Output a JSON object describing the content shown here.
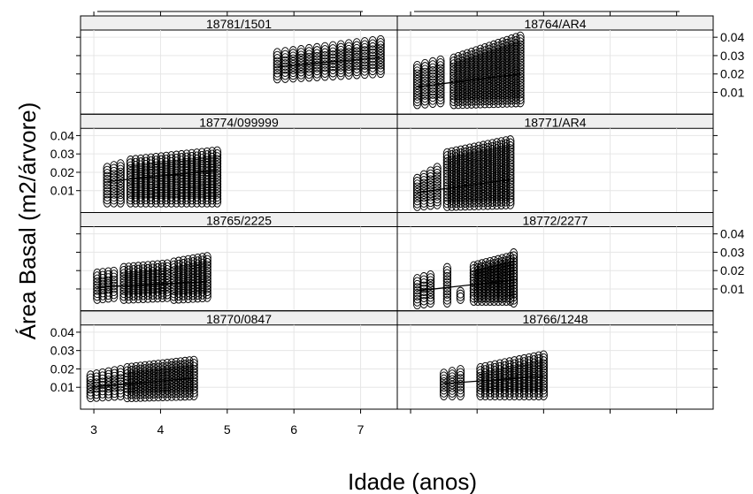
{
  "chart_data": {
    "type": "scatter",
    "layout": "trellis 2 columns x 4 rows, shared axes",
    "xlabel": "Idade (anos)",
    "ylabel": "Área Basal (m2/árvore)",
    "xlim": [
      2.8,
      7.55
    ],
    "ylim": [
      0.0,
      0.042
    ],
    "x_ticks": [
      3,
      4,
      5,
      6,
      7
    ],
    "y_ticks": [
      0.01,
      0.02,
      0.03,
      0.04
    ],
    "y_tick_labels": [
      "0.01",
      "0.02",
      "0.03",
      "0.04"
    ],
    "grid": true,
    "marker": "open ellipse",
    "panels": [
      {
        "label": "18781/1501",
        "col": 0,
        "row": 0,
        "clusters": [
          {
            "x_start": 5.75,
            "x_end": 7.3,
            "n": 14,
            "low_start": 0.018,
            "low_end": 0.021,
            "high_start": 0.031,
            "high_end": 0.038
          }
        ],
        "trend": [
          [
            5.75,
            0.024
          ],
          [
            7.3,
            0.029
          ]
        ]
      },
      {
        "label": "18764/AR4",
        "col": 1,
        "row": 0,
        "clusters": [
          {
            "x_start": 3.1,
            "x_end": 3.45,
            "n": 4,
            "low_start": 0.004,
            "low_end": 0.005,
            "high_start": 0.024,
            "high_end": 0.027
          },
          {
            "x_start": 3.65,
            "x_end": 4.65,
            "n": 16,
            "low_start": 0.004,
            "low_end": 0.005,
            "high_start": 0.028,
            "high_end": 0.04
          }
        ],
        "trend": [
          [
            3.1,
            0.013
          ],
          [
            4.65,
            0.02
          ]
        ]
      },
      {
        "label": "18774/099999",
        "col": 0,
        "row": 1,
        "clusters": [
          {
            "x_start": 3.2,
            "x_end": 3.4,
            "n": 3,
            "low_start": 0.004,
            "low_end": 0.004,
            "high_start": 0.022,
            "high_end": 0.024
          },
          {
            "x_start": 3.55,
            "x_end": 4.85,
            "n": 18,
            "low_start": 0.004,
            "low_end": 0.004,
            "high_start": 0.026,
            "high_end": 0.031
          }
        ],
        "trend": [
          [
            3.2,
            0.015
          ],
          [
            4.85,
            0.021
          ]
        ]
      },
      {
        "label": "18771/AR4",
        "col": 1,
        "row": 1,
        "clusters": [
          {
            "x_start": 3.1,
            "x_end": 3.4,
            "n": 4,
            "low_start": 0.002,
            "low_end": 0.003,
            "high_start": 0.016,
            "high_end": 0.022
          },
          {
            "x_start": 3.55,
            "x_end": 4.5,
            "n": 15,
            "low_start": 0.002,
            "low_end": 0.003,
            "high_start": 0.03,
            "high_end": 0.037
          }
        ],
        "trend": [
          [
            3.1,
            0.009
          ],
          [
            4.5,
            0.016
          ]
        ]
      },
      {
        "label": "18765/2225",
        "col": 0,
        "row": 2,
        "clusters": [
          {
            "x_start": 3.05,
            "x_end": 3.3,
            "n": 4,
            "low_start": 0.005,
            "low_end": 0.006,
            "high_start": 0.018,
            "high_end": 0.019
          },
          {
            "x_start": 3.45,
            "x_end": 4.1,
            "n": 10,
            "low_start": 0.005,
            "low_end": 0.006,
            "high_start": 0.021,
            "high_end": 0.023
          },
          {
            "x_start": 4.2,
            "x_end": 4.7,
            "n": 8,
            "low_start": 0.005,
            "low_end": 0.006,
            "high_start": 0.024,
            "high_end": 0.027
          }
        ],
        "trend": [
          [
            3.05,
            0.011
          ],
          [
            4.7,
            0.014
          ]
        ]
      },
      {
        "label": "18772/2277",
        "col": 1,
        "row": 2,
        "clusters": [
          {
            "x_start": 3.1,
            "x_end": 3.3,
            "n": 3,
            "low_start": 0.002,
            "low_end": 0.003,
            "high_start": 0.015,
            "high_end": 0.017
          },
          {
            "x_start": 3.55,
            "x_end": 3.6,
            "n": 1,
            "low_start": 0.003,
            "low_end": 0.003,
            "high_start": 0.021,
            "high_end": 0.021
          },
          {
            "x_start": 3.75,
            "x_end": 3.8,
            "n": 1,
            "low_start": 0.005,
            "low_end": 0.005,
            "high_start": 0.008,
            "high_end": 0.008
          },
          {
            "x_start": 3.95,
            "x_end": 4.5,
            "n": 10,
            "low_start": 0.004,
            "low_end": 0.004,
            "high_start": 0.022,
            "high_end": 0.027
          },
          {
            "x_start": 4.55,
            "x_end": 4.6,
            "n": 1,
            "low_start": 0.003,
            "low_end": 0.003,
            "high_start": 0.029,
            "high_end": 0.029
          }
        ],
        "trend": [
          [
            3.1,
            0.009
          ],
          [
            4.6,
            0.015
          ]
        ]
      },
      {
        "label": "18770/0847",
        "col": 0,
        "row": 3,
        "clusters": [
          {
            "x_start": 2.95,
            "x_end": 3.4,
            "n": 6,
            "low_start": 0.005,
            "low_end": 0.006,
            "high_start": 0.016,
            "high_end": 0.019
          },
          {
            "x_start": 3.5,
            "x_end": 4.5,
            "n": 16,
            "low_start": 0.005,
            "low_end": 0.006,
            "high_start": 0.02,
            "high_end": 0.024
          }
        ],
        "trend": [
          [
            2.95,
            0.01
          ],
          [
            4.5,
            0.015
          ]
        ]
      },
      {
        "label": "18766/1248",
        "col": 1,
        "row": 3,
        "clusters": [
          {
            "x_start": 3.5,
            "x_end": 3.75,
            "n": 3,
            "low_start": 0.006,
            "low_end": 0.006,
            "high_start": 0.017,
            "high_end": 0.019
          },
          {
            "x_start": 4.05,
            "x_end": 5.0,
            "n": 14,
            "low_start": 0.006,
            "low_end": 0.006,
            "high_start": 0.02,
            "high_end": 0.027
          }
        ],
        "trend": [
          [
            3.5,
            0.012
          ],
          [
            5.0,
            0.016
          ]
        ]
      }
    ]
  }
}
